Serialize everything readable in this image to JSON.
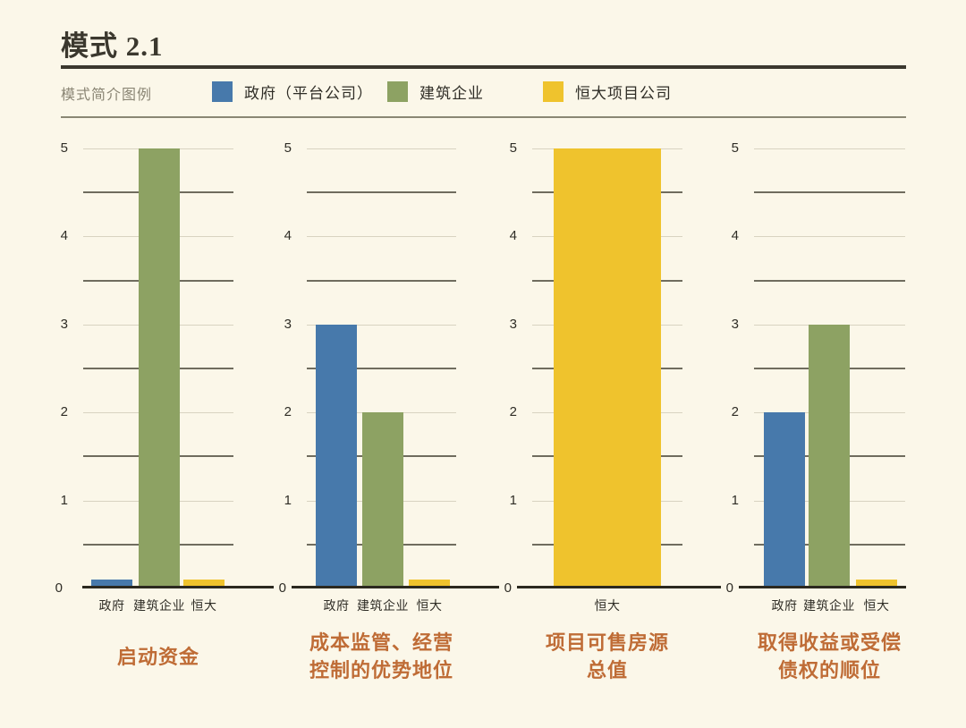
{
  "title": "模式 2.1",
  "legend": {
    "label": "模式简介图例",
    "items": [
      {
        "label": "政府（平台公司）",
        "color": "#4779AB"
      },
      {
        "label": "建筑企业",
        "color": "#8DA263"
      },
      {
        "label": "恒大项目公司",
        "color": "#EFC32D"
      }
    ]
  },
  "colors": {
    "background": "#FBF7E9",
    "ink": "#2F2D26",
    "title": "#3B382E",
    "muted_label": "#8A8574",
    "caption": "#BF6C36",
    "grid_light": "#D8D3C1",
    "grid_dark": "#6F6C5E",
    "axis": "#2B2920",
    "bar_blue": "#4779AB",
    "bar_green": "#8DA263",
    "bar_yellow": "#EFC32D"
  },
  "chart_data": [
    {
      "type": "bar",
      "caption_lines": [
        "启动资金"
      ],
      "categories": [
        "政府",
        "建筑企业",
        "恒大"
      ],
      "values": [
        0.1,
        5,
        0.1
      ],
      "bar_colors": [
        "#4779AB",
        "#8DA263",
        "#EFC32D"
      ],
      "series_names": [
        "政府（平台公司）",
        "建筑企业",
        "恒大项目公司"
      ],
      "ylim": [
        0,
        5
      ],
      "yticks": [
        0,
        1,
        2,
        3,
        4,
        5
      ],
      "grid_interval": 0.5,
      "legend_position": "top"
    },
    {
      "type": "bar",
      "caption_lines": [
        "成本监管、经营",
        "控制的优势地位"
      ],
      "categories": [
        "政府",
        "建筑企业",
        "恒大"
      ],
      "values": [
        3,
        2,
        0.1
      ],
      "bar_colors": [
        "#4779AB",
        "#8DA263",
        "#EFC32D"
      ],
      "series_names": [
        "政府（平台公司）",
        "建筑企业",
        "恒大项目公司"
      ],
      "ylim": [
        0,
        5
      ],
      "yticks": [
        0,
        1,
        2,
        3,
        4,
        5
      ],
      "grid_interval": 0.5,
      "legend_position": "top"
    },
    {
      "type": "bar",
      "caption_lines": [
        "项目可售房源",
        "总值"
      ],
      "categories": [
        "恒大"
      ],
      "values": [
        5
      ],
      "bar_colors": [
        "#EFC32D"
      ],
      "series_names": [
        "恒大项目公司"
      ],
      "ylim": [
        0,
        5
      ],
      "yticks": [
        0,
        1,
        2,
        3,
        4,
        5
      ],
      "grid_interval": 0.5,
      "legend_position": "top"
    },
    {
      "type": "bar",
      "caption_lines": [
        "取得收益或受偿",
        "债权的顺位"
      ],
      "categories": [
        "政府",
        "建筑企业",
        "恒大"
      ],
      "values": [
        2,
        3,
        0.1
      ],
      "bar_colors": [
        "#4779AB",
        "#8DA263",
        "#EFC32D"
      ],
      "series_names": [
        "政府（平台公司）",
        "建筑企业",
        "恒大项目公司"
      ],
      "ylim": [
        0,
        5
      ],
      "yticks": [
        0,
        1,
        2,
        3,
        4,
        5
      ],
      "grid_interval": 0.5,
      "legend_position": "top"
    }
  ]
}
